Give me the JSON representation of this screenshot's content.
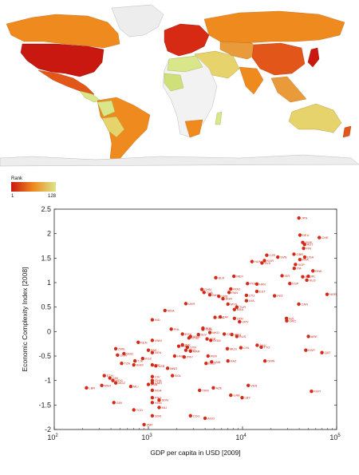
{
  "map": {
    "legend_title": "Rank",
    "legend_min": "1",
    "legend_max": "128",
    "color_high": "#c8180f",
    "color_mid": "#ef8a1f",
    "color_low": "#d9e68a",
    "color_nodata": "#ededed"
  },
  "chart_data": {
    "type": "scatter",
    "xlabel": "GDP per capita in USD [2009]",
    "ylabel": "Economic Complexity Index [2008]",
    "xscale": "log",
    "xlim": [
      100,
      100000
    ],
    "ylim": [
      -2,
      2.5
    ],
    "x_ticks": [
      {
        "base": "10",
        "exp": "2"
      },
      {
        "base": "10",
        "exp": "3"
      },
      {
        "base": "10",
        "exp": "4"
      },
      {
        "base": "10",
        "exp": "5"
      }
    ],
    "y_ticks": [
      "2.5",
      "2",
      "1.5",
      "1",
      "0.5",
      "0",
      "-0.5",
      "-1",
      "-1.5",
      "-2"
    ],
    "grid": false,
    "point_color": "#d42a18",
    "points": [
      {
        "label": "JPN",
        "x": 39700,
        "y": 2.32
      },
      {
        "label": "DEU",
        "x": 40800,
        "y": 1.97
      },
      {
        "label": "CHE",
        "x": 65400,
        "y": 1.92
      },
      {
        "label": "SWE",
        "x": 43600,
        "y": 1.82
      },
      {
        "label": "AUT",
        "x": 45600,
        "y": 1.78
      },
      {
        "label": "FIN",
        "x": 44600,
        "y": 1.7
      },
      {
        "label": "GBR",
        "x": 35200,
        "y": 1.58
      },
      {
        "label": "USA",
        "x": 45800,
        "y": 1.52
      },
      {
        "label": "SVN",
        "x": 23700,
        "y": 1.52
      },
      {
        "label": "FRA",
        "x": 40700,
        "y": 1.47
      },
      {
        "label": "CZE",
        "x": 18100,
        "y": 1.56
      },
      {
        "label": "KOR",
        "x": 17100,
        "y": 1.45
      },
      {
        "label": "HUN",
        "x": 12600,
        "y": 1.43
      },
      {
        "label": "SVK",
        "x": 16100,
        "y": 1.4
      },
      {
        "label": "SGP",
        "x": 36500,
        "y": 1.37
      },
      {
        "label": "ITA",
        "x": 35400,
        "y": 1.29
      },
      {
        "label": "DNK",
        "x": 56000,
        "y": 1.24
      },
      {
        "label": "ISR",
        "x": 26300,
        "y": 1.14
      },
      {
        "label": "IRL",
        "x": 50000,
        "y": 1.13
      },
      {
        "label": "BEL",
        "x": 43600,
        "y": 1.12
      },
      {
        "label": "NLD",
        "x": 48200,
        "y": 1.05
      },
      {
        "label": "ESP",
        "x": 31800,
        "y": 0.98
      },
      {
        "label": "MEX",
        "x": 8100,
        "y": 1.13
      },
      {
        "label": "BLR",
        "x": 5200,
        "y": 1.1
      },
      {
        "label": "POL",
        "x": 11300,
        "y": 0.98
      },
      {
        "label": "HRV",
        "x": 14200,
        "y": 0.97
      },
      {
        "label": "EST",
        "x": 14200,
        "y": 0.82
      },
      {
        "label": "CHN",
        "x": 3700,
        "y": 0.86
      },
      {
        "label": "THA",
        "x": 3900,
        "y": 0.8
      },
      {
        "label": "ROU",
        "x": 7500,
        "y": 0.87
      },
      {
        "label": "PAN",
        "x": 7200,
        "y": 0.8
      },
      {
        "label": "BIH",
        "x": 4500,
        "y": 0.75
      },
      {
        "label": "LTU",
        "x": 11000,
        "y": 0.74
      },
      {
        "label": "SRB",
        "x": 5600,
        "y": 0.72
      },
      {
        "label": "BGR",
        "x": 6200,
        "y": 0.67
      },
      {
        "label": "LVA",
        "x": 11000,
        "y": 0.63
      },
      {
        "label": "PRT",
        "x": 21900,
        "y": 0.73
      },
      {
        "label": "UKR",
        "x": 2500,
        "y": 0.57
      },
      {
        "label": "MDA",
        "x": 1500,
        "y": 0.43
      },
      {
        "label": "IND",
        "x": 1100,
        "y": 0.24
      },
      {
        "label": "MYS",
        "x": 7000,
        "y": 0.56
      },
      {
        "label": "TUR",
        "x": 8700,
        "y": 0.5
      },
      {
        "label": "BRA",
        "x": 8200,
        "y": 0.45
      },
      {
        "label": "COL",
        "x": 5100,
        "y": 0.29
      },
      {
        "label": "URY",
        "x": 9300,
        "y": 0.2
      },
      {
        "label": "ZAF",
        "x": 5800,
        "y": 0.3
      },
      {
        "label": "LBN",
        "x": 8200,
        "y": 0.27
      },
      {
        "label": "CAN",
        "x": 39600,
        "y": 0.56
      },
      {
        "label": "NZL",
        "x": 29300,
        "y": 0.27
      },
      {
        "label": "GRC",
        "x": 29500,
        "y": 0.22
      },
      {
        "label": "NOR",
        "x": 79100,
        "y": 0.76
      },
      {
        "label": "PHL",
        "x": 1750,
        "y": 0.05
      },
      {
        "label": "TUN",
        "x": 3800,
        "y": 0.05
      },
      {
        "label": "ALB",
        "x": 3800,
        "y": 0.07
      },
      {
        "label": "EGY",
        "x": 2300,
        "y": -0.05
      },
      {
        "label": "GTM",
        "x": 2700,
        "y": -0.13
      },
      {
        "label": "MKD",
        "x": 4500,
        "y": -0.02
      },
      {
        "label": "CRI",
        "x": 6400,
        "y": -0.05
      },
      {
        "label": "SLV",
        "x": 3400,
        "y": -0.06
      },
      {
        "label": "ARM",
        "x": 2800,
        "y": -0.1
      },
      {
        "label": "JOR",
        "x": 4200,
        "y": -0.15
      },
      {
        "label": "DOM",
        "x": 4600,
        "y": -0.18
      },
      {
        "label": "ARG",
        "x": 7700,
        "y": -0.06
      },
      {
        "label": "RUS",
        "x": 8700,
        "y": -0.1
      },
      {
        "label": "VNM",
        "x": 1100,
        "y": -0.18
      },
      {
        "label": "KEN",
        "x": 780,
        "y": -0.22
      },
      {
        "label": "IDN",
        "x": 2300,
        "y": -0.27
      },
      {
        "label": "LKA",
        "x": 2100,
        "y": -0.3
      },
      {
        "label": "SYR",
        "x": 2600,
        "y": -0.32
      },
      {
        "label": "GEO",
        "x": 2500,
        "y": -0.38
      },
      {
        "label": "PAK",
        "x": 1000,
        "y": -0.38
      },
      {
        "label": "MAR",
        "x": 2800,
        "y": -0.4
      },
      {
        "label": "SEN",
        "x": 1100,
        "y": -0.43
      },
      {
        "label": "BGD",
        "x": 550,
        "y": -0.45
      },
      {
        "label": "ZWE",
        "x": 450,
        "y": -0.35
      },
      {
        "label": "UGA",
        "x": 470,
        "y": -0.48
      },
      {
        "label": "KGZ",
        "x": 870,
        "y": -0.55
      },
      {
        "label": "TJK",
        "x": 720,
        "y": -0.6
      },
      {
        "label": "TZA",
        "x": 520,
        "y": -0.65
      },
      {
        "label": "PRY",
        "x": 2400,
        "y": -0.52
      },
      {
        "label": "HND",
        "x": 1900,
        "y": -0.5
      },
      {
        "label": "KAZ",
        "x": 7000,
        "y": -0.6
      },
      {
        "label": "MUS",
        "x": 6900,
        "y": -0.35
      },
      {
        "label": "CHL",
        "x": 9600,
        "y": -0.33
      },
      {
        "label": "PER",
        "x": 4300,
        "y": -0.5
      },
      {
        "label": "SAU",
        "x": 14300,
        "y": -0.28
      },
      {
        "label": "TTO",
        "x": 15800,
        "y": -0.32
      },
      {
        "label": "OMN",
        "x": 17300,
        "y": -0.6
      },
      {
        "label": "ECU",
        "x": 4100,
        "y": -0.65
      },
      {
        "label": "JAM",
        "x": 4700,
        "y": -0.62
      },
      {
        "label": "NIC",
        "x": 1100,
        "y": -0.68
      },
      {
        "label": "KHM",
        "x": 700,
        "y": -0.68
      },
      {
        "label": "UZB",
        "x": 1200,
        "y": -0.7
      },
      {
        "label": "BOL",
        "x": 1800,
        "y": -0.9
      },
      {
        "label": "MNG",
        "x": 1600,
        "y": -0.75
      },
      {
        "label": "ETH",
        "x": 340,
        "y": -0.9
      },
      {
        "label": "GIN",
        "x": 390,
        "y": -0.95
      },
      {
        "label": "MDG",
        "x": 420,
        "y": -1.0
      },
      {
        "label": "GHA",
        "x": 1100,
        "y": -1.0
      },
      {
        "label": "CIV",
        "x": 1100,
        "y": -0.92
      },
      {
        "label": "CMR",
        "x": 1100,
        "y": -1.05
      },
      {
        "label": "ZMB",
        "x": 1000,
        "y": -1.08
      },
      {
        "label": "MOZ",
        "x": 450,
        "y": -1.05
      },
      {
        "label": "MLI",
        "x": 650,
        "y": -1.12
      },
      {
        "label": "MWI",
        "x": 320,
        "y": -1.1
      },
      {
        "label": "LBR",
        "x": 220,
        "y": -1.15
      },
      {
        "label": "NGA",
        "x": 1100,
        "y": -1.2
      },
      {
        "label": "PNG",
        "x": 1100,
        "y": -1.35
      },
      {
        "label": "YEM",
        "x": 1100,
        "y": -1.45
      },
      {
        "label": "ARE",
        "x": 50100,
        "y": -0.1
      },
      {
        "label": "KWT",
        "x": 47000,
        "y": -0.38
      },
      {
        "label": "QAT",
        "x": 69800,
        "y": -0.43
      },
      {
        "label": "TKM",
        "x": 3500,
        "y": -1.2
      },
      {
        "label": "AZE",
        "x": 4900,
        "y": -1.15
      },
      {
        "label": "GAB",
        "x": 7500,
        "y": -1.3
      },
      {
        "label": "VEN",
        "x": 11500,
        "y": -1.1
      },
      {
        "label": "LBY",
        "x": 9900,
        "y": -1.35
      },
      {
        "label": "SDN",
        "x": 1300,
        "y": -1.4
      },
      {
        "label": "KWT",
        "x": 54000,
        "y": -1.22
      },
      {
        "label": "GIN",
        "x": 430,
        "y": -1.45
      },
      {
        "label": "SDN",
        "x": 1100,
        "y": -1.72
      },
      {
        "label": "CDG",
        "x": 2800,
        "y": -1.72
      },
      {
        "label": "AGO",
        "x": 4000,
        "y": -1.77
      },
      {
        "label": "ZMF",
        "x": 900,
        "y": -1.9
      },
      {
        "label": "MLI",
        "x": 1300,
        "y": -1.55
      },
      {
        "label": "TCD",
        "x": 700,
        "y": -1.6
      }
    ]
  }
}
